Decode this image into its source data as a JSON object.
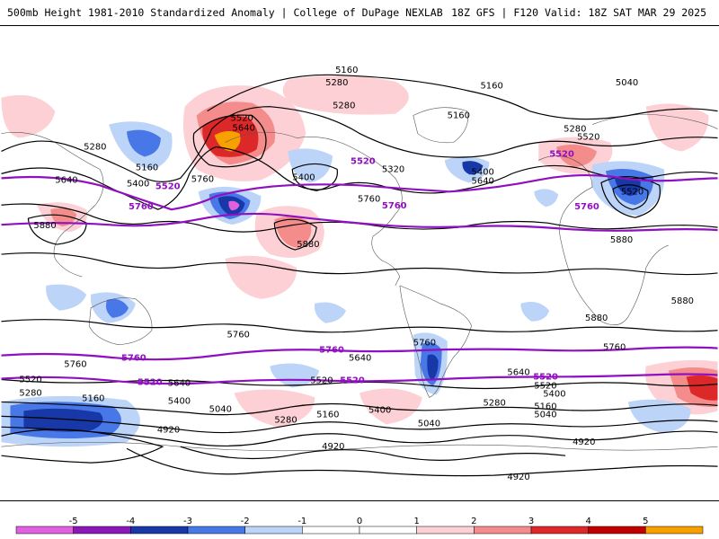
{
  "header": {
    "left_text": "500mb Height 1981-2010 Standardized Anomaly | College of DuPage NEXLAB",
    "right_text": "18Z GFS | F120 Valid: 18Z SAT MAR 29 2025"
  },
  "colors": {
    "neg5": "#e060e0",
    "neg4": "#8a18b8",
    "neg3": "#1838a8",
    "neg2": "#4878e8",
    "neg1": "#bcd4f8",
    "zero": "#ffffff",
    "pos1": "#fcd0d4",
    "pos2": "#f48c8c",
    "pos3": "#dc2828",
    "pos4": "#c00000",
    "pos5": "#f8a000",
    "contour": "#000000",
    "highlight_contour": "#9010c0",
    "coastline": "#555555"
  },
  "colorbar": {
    "ticks": [
      "-5",
      "-4",
      "-3",
      "-2",
      "-1",
      "0",
      "1",
      "2",
      "3",
      "4",
      "5"
    ]
  },
  "contour_labels": {
    "c5160_top": "5160",
    "c5280_a": "5280",
    "c5160_b": "5160",
    "c5040_a": "5040",
    "c5520_a": "5520",
    "c5640_a": "5640",
    "c5280_b": "5280",
    "c5160_c": "5160",
    "c5280_c": "5280",
    "c5160_d": "5160",
    "c5640_b": "5640",
    "c5400_a": "5400",
    "c5520_p1": "5520",
    "c5760_p1": "5760",
    "c5880_a": "5880",
    "c5400_b": "5400",
    "c5760_b": "5760",
    "c5520_p2": "5520",
    "c5320": "5320",
    "c5400_c": "5400",
    "c5640_c": "5640",
    "c5280_d": "5280",
    "c5520_e": "5520",
    "c5520_p3": "5520",
    "c5520_f": "5520",
    "c5760_c": "5760",
    "c5760_p2": "5760",
    "c5760_p3": "5760",
    "c5880_b": "5880",
    "c5880_c": "5880",
    "c5880_d": "5880",
    "c5880_e": "5880",
    "c5760_d": "5760",
    "c5760_e": "5760",
    "c5760_p4": "5760",
    "c5640_d": "5640",
    "c5760_f": "5760",
    "c5760_p5": "5760",
    "c5760_g": "5760",
    "c5520_g": "5520",
    "c5520_p4": "5520",
    "c5640_e": "5640",
    "c5520_h": "5520",
    "c5520_p5": "5520",
    "c5640_f": "5640",
    "c5520_p6": "5520",
    "c5520_i": "5520",
    "c5280_e": "5280",
    "c5160_e": "5160",
    "c5400_d": "5400",
    "c5040_b": "5040",
    "c5280_f": "5280",
    "c5160_f": "5160",
    "c5400_e": "5400",
    "c5040_c": "5040",
    "c5280_g": "5280",
    "c5400_f": "5400",
    "c5160_g": "5160",
    "c5040_d": "5040",
    "c4920_a": "4920",
    "c4920_b": "4920",
    "c4920_c": "4920"
  }
}
